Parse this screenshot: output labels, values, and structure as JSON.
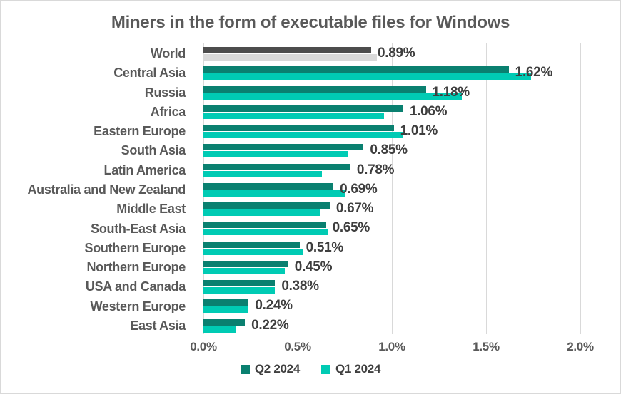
{
  "chart_data": {
    "type": "bar",
    "orientation": "horizontal",
    "title": "Miners in the form of executable files for Windows",
    "categories": [
      "World",
      "Central Asia",
      "Russia",
      "Africa",
      "Eastern Europe",
      "South Asia",
      "Latin America",
      "Australia and New Zealand",
      "Middle East",
      "South-East Asia",
      "Southern Europe",
      "Northern Europe",
      "USA and Canada",
      "Western Europe",
      "East Asia"
    ],
    "series": [
      {
        "name": "Q2 2024",
        "color": "#0a8070",
        "world_color": "#4d4d4d",
        "values": [
          0.89,
          1.62,
          1.18,
          1.06,
          1.01,
          0.85,
          0.78,
          0.69,
          0.67,
          0.65,
          0.51,
          0.45,
          0.38,
          0.24,
          0.22
        ],
        "data_labels": [
          "0.89%",
          "1.62%",
          "1.18%",
          "1.06%",
          "1.01%",
          "0.85%",
          "0.78%",
          "0.69%",
          "0.67%",
          "0.65%",
          "0.51%",
          "0.45%",
          "0.38%",
          "0.24%",
          "0.22%"
        ]
      },
      {
        "name": "Q1 2024",
        "color": "#00cbb4",
        "world_color": "#d9d9d9",
        "values": [
          0.92,
          1.74,
          1.37,
          0.96,
          1.06,
          0.77,
          0.63,
          0.75,
          0.62,
          0.66,
          0.53,
          0.43,
          0.38,
          0.24,
          0.17
        ]
      }
    ],
    "x_axis": {
      "tick_labels": [
        "0.0%",
        "0.5%",
        "1.0%",
        "1.5%",
        "2.0%"
      ],
      "tick_values": [
        0,
        0.5,
        1.0,
        1.5,
        2.0
      ],
      "max": 2.0
    },
    "grid": true,
    "legend_position": "bottom",
    "colors": {
      "gridline": "#d9d9d9",
      "title_text": "#595959",
      "category_text": "#595959",
      "data_label_text": "#3e3e3e",
      "axis_text": "#595959",
      "legend_text": "#404040"
    }
  }
}
